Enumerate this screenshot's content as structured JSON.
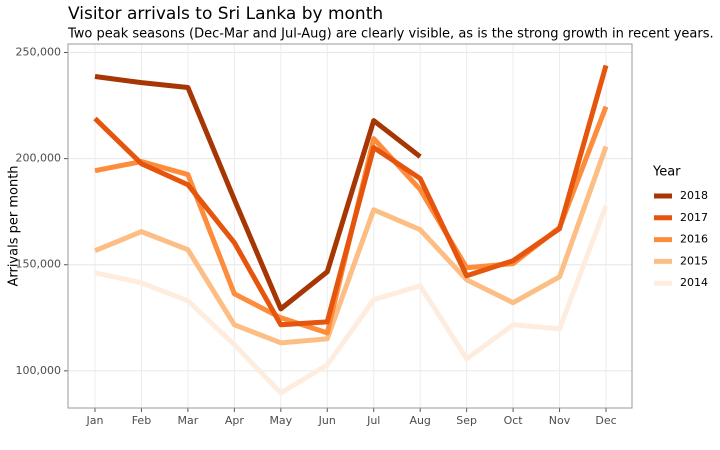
{
  "chart_data": {
    "type": "line",
    "title": "Visitor arrivals to Sri Lanka by month",
    "subtitle": "Two peak seasons (Dec-Mar and Jul-Aug) are clearly visible, as is the strong growth in recent years.",
    "y_label": "Arrivals per month",
    "legend_title": "Year",
    "legend": "right",
    "grid": true,
    "categories": [
      "Jan",
      "Feb",
      "Mar",
      "Apr",
      "May",
      "Jun",
      "Jul",
      "Aug",
      "Sep",
      "Oct",
      "Nov",
      "Dec"
    ],
    "ylim": [
      82500,
      254000
    ],
    "yticks": [
      {
        "value": 100000,
        "label": "100,000"
      },
      {
        "value": 150000,
        "label": "150,000"
      },
      {
        "value": 200000,
        "label": "200,000"
      },
      {
        "value": 250000,
        "label": "250,000"
      }
    ],
    "series": [
      {
        "name": "2018",
        "color": "#a63603",
        "values": [
          238700,
          235800,
          233500,
          180700,
          129200,
          146700,
          217900,
          200900,
          null,
          null,
          null,
          null
        ]
      },
      {
        "name": "2017",
        "color": "#e6550d",
        "values": [
          218900,
          197600,
          187700,
          160400,
          121700,
          123100,
          205200,
          190600,
          144800,
          151900,
          167000,
          243900
        ]
      },
      {
        "name": "2016",
        "color": "#fd8d3c",
        "values": [
          194300,
          198600,
          192500,
          136300,
          125000,
          117900,
          209400,
          185400,
          148600,
          150500,
          167500,
          224500
        ]
      },
      {
        "name": "2015",
        "color": "#fdbe85",
        "values": [
          156600,
          165600,
          157100,
          121700,
          113200,
          115100,
          175900,
          166500,
          142900,
          132100,
          144300,
          205700
        ]
      },
      {
        "name": "2014",
        "color": "#feedde",
        "values": [
          146200,
          141500,
          133000,
          112300,
          89600,
          102800,
          133500,
          140100,
          105700,
          121700,
          119800,
          177800
        ]
      }
    ]
  }
}
